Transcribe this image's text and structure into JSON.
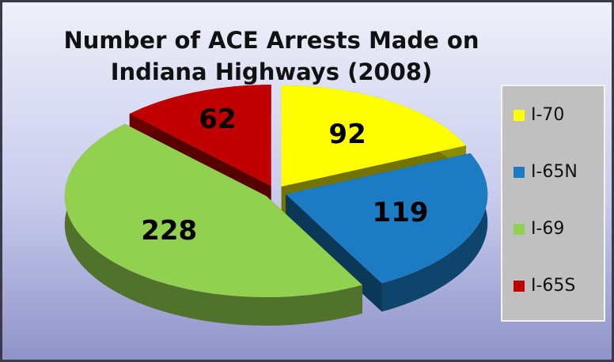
{
  "chart_data": {
    "type": "pie",
    "title": "Number of ACE Arrests Made on Indiana Highways (2008)",
    "categories": [
      "I-70",
      "I-65N",
      "I-69",
      "I-65S"
    ],
    "values": [
      92,
      119,
      228,
      62
    ],
    "colors": [
      "#ffff00",
      "#1b7cc4",
      "#92d050",
      "#c00000"
    ],
    "legend": "right"
  }
}
